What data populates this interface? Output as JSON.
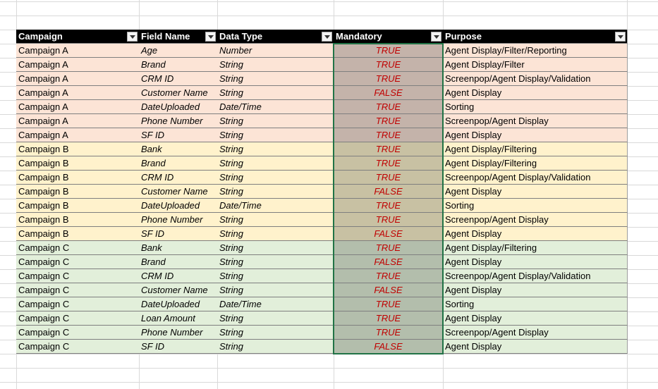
{
  "table": {
    "header": [
      "Campaign",
      "Field Name",
      "Data Type",
      "Mandatory",
      "Purpose"
    ],
    "rows": [
      [
        "Campaign A",
        "Age",
        "Number",
        "TRUE",
        "Agent Display/Filter/Reporting"
      ],
      [
        "Campaign A",
        "Brand",
        "String",
        "TRUE",
        "Agent Display/Filter"
      ],
      [
        "Campaign A",
        "CRM ID",
        "String",
        "TRUE",
        "Screenpop/Agent Display/Validation"
      ],
      [
        "Campaign A",
        "Customer Name",
        "String",
        "FALSE",
        "Agent Display"
      ],
      [
        "Campaign A",
        "DateUploaded",
        "Date/Time",
        "TRUE",
        "Sorting"
      ],
      [
        "Campaign A",
        "Phone Number",
        "String",
        "TRUE",
        "Screenpop/Agent Display"
      ],
      [
        "Campaign A",
        "SF ID",
        "String",
        "TRUE",
        "Agent Display"
      ],
      [
        "Campaign B",
        "Bank",
        "String",
        "TRUE",
        "Agent Display/Filtering"
      ],
      [
        "Campaign B",
        "Brand",
        "String",
        "TRUE",
        "Agent Display/Filtering"
      ],
      [
        "Campaign B",
        "CRM ID",
        "String",
        "TRUE",
        "Screenpop/Agent Display/Validation"
      ],
      [
        "Campaign B",
        "Customer Name",
        "String",
        "FALSE",
        "Agent Display"
      ],
      [
        "Campaign B",
        "DateUploaded",
        "Date/Time",
        "TRUE",
        "Sorting"
      ],
      [
        "Campaign B",
        "Phone Number",
        "String",
        "TRUE",
        "Screenpop/Agent Display"
      ],
      [
        "Campaign B",
        "SF ID",
        "String",
        "FALSE",
        "Agent Display"
      ],
      [
        "Campaign C",
        "Bank",
        "String",
        "TRUE",
        "Agent Display/Filtering"
      ],
      [
        "Campaign C",
        "Brand",
        "String",
        "FALSE",
        "Agent Display"
      ],
      [
        "Campaign C",
        "CRM ID",
        "String",
        "TRUE",
        "Screenpop/Agent Display/Validation"
      ],
      [
        "Campaign C",
        "Customer Name",
        "String",
        "FALSE",
        "Agent Display"
      ],
      [
        "Campaign C",
        "DateUploaded",
        "Date/Time",
        "TRUE",
        "Sorting"
      ],
      [
        "Campaign C",
        "Loan Amount",
        "String",
        "TRUE",
        "Agent Display"
      ],
      [
        "Campaign C",
        "Phone Number",
        "String",
        "TRUE",
        "Screenpop/Agent Display"
      ],
      [
        "Campaign C",
        "SF ID",
        "String",
        "FALSE",
        "Agent Display"
      ]
    ]
  }
}
